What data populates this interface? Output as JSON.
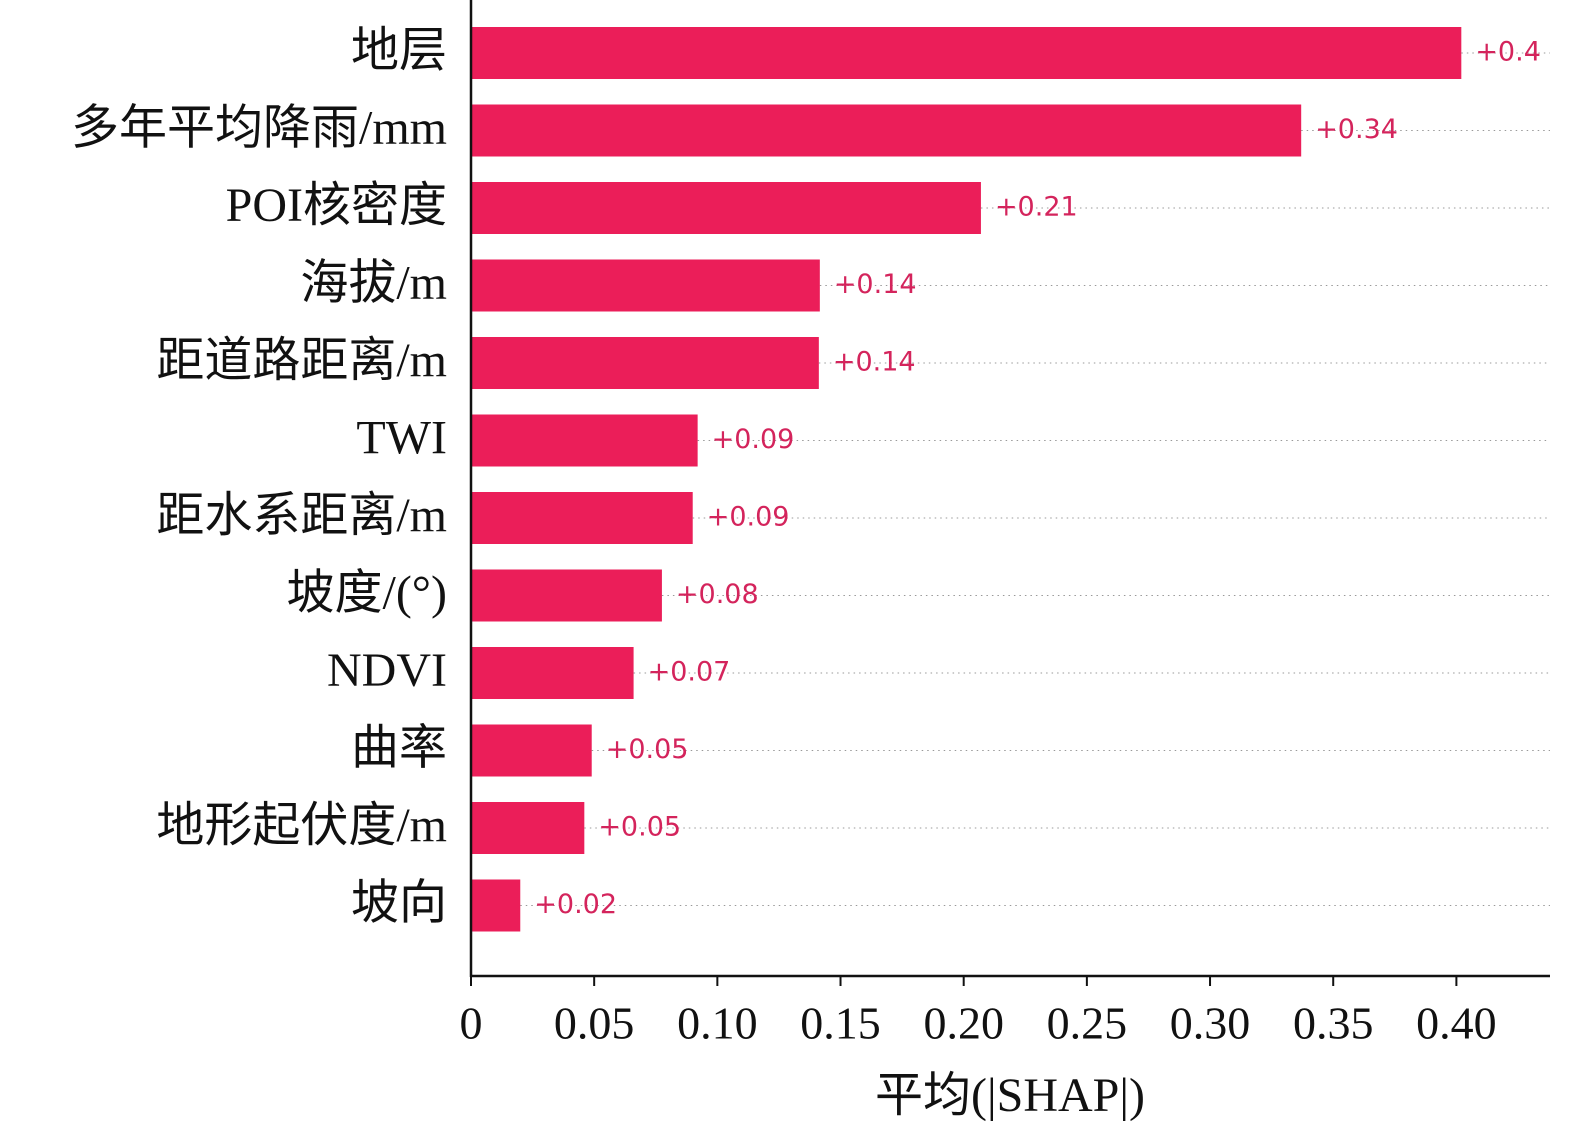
{
  "chart_data": {
    "type": "bar",
    "orientation": "horizontal",
    "xlabel": "平均(|SHAP|)",
    "categories": [
      "地层",
      "多年平均降雨/mm",
      "POI核密度",
      "海拔/m",
      "距道路距离/m",
      "TWI",
      "距水系距离/m",
      "坡度/(°)",
      "NDVI",
      "曲率",
      "地形起伏度/m",
      "坡向"
    ],
    "values": [
      0.402,
      0.337,
      0.207,
      0.1416,
      0.1412,
      0.092,
      0.09,
      0.0775,
      0.066,
      0.049,
      0.046,
      0.02
    ],
    "value_labels": [
      "+0.4",
      "+0.34",
      "+0.21",
      "+0.14",
      "+0.14",
      "+0.09",
      "+0.09",
      "+0.08",
      "+0.07",
      "+0.05",
      "+0.05",
      "+0.02"
    ],
    "color": "#eb1e59",
    "label_color": "#d4245c",
    "xlim": [
      0,
      0.438
    ],
    "xticks": [
      0,
      0.05,
      {
        "value": 0.1,
        "label": "0.10"
      },
      0.15,
      {
        "value": 0.2,
        "label": "0.20"
      },
      0.25,
      {
        "value": 0.3,
        "label": "0.30"
      },
      0.35,
      {
        "value": 0.4,
        "label": "0.40"
      }
    ]
  }
}
